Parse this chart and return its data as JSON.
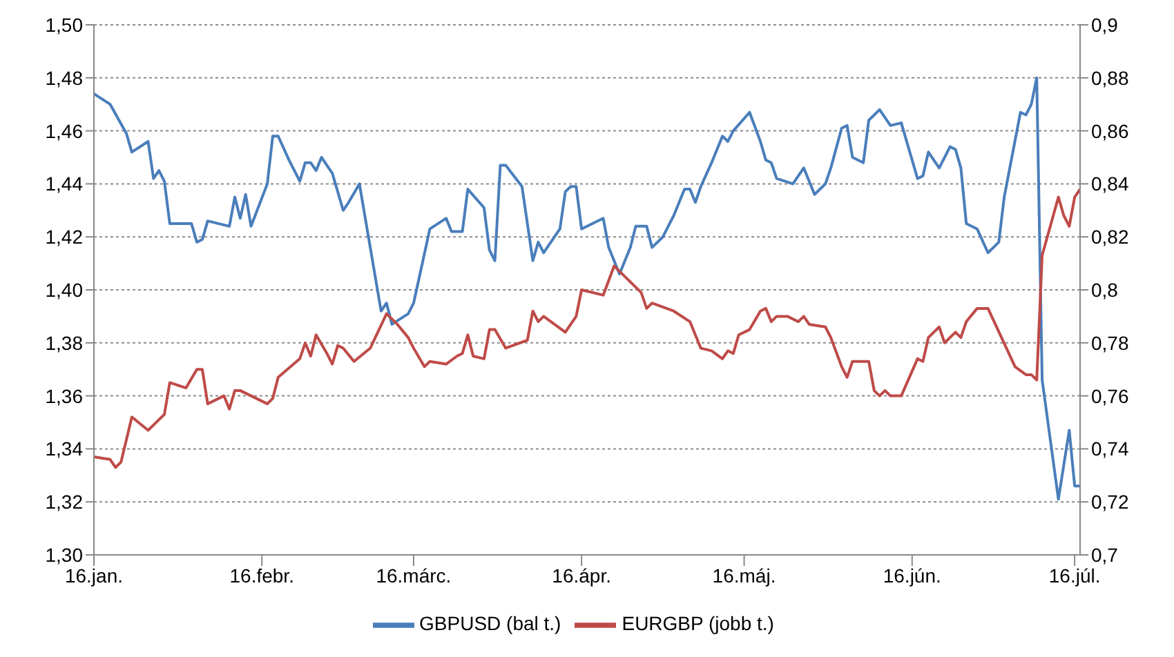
{
  "chart_data": {
    "type": "line",
    "xlim": [
      "--01-16",
      "--07-17"
    ],
    "xticks": [
      {
        "value": "--01-16",
        "label": "16.jan."
      },
      {
        "value": "--02-16",
        "label": "16.febr."
      },
      {
        "value": "--03-16",
        "label": "16.márc."
      },
      {
        "value": "--04-16",
        "label": "16.ápr."
      },
      {
        "value": "--05-16",
        "label": "16.máj."
      },
      {
        "value": "--06-16",
        "label": "16.jún."
      },
      {
        "value": "--07-16",
        "label": "16.júl."
      }
    ],
    "ylim": [
      1.3,
      1.5
    ],
    "yticks": [
      {
        "value": 1.3,
        "label": "1,30"
      },
      {
        "value": 1.32,
        "label": "1,32"
      },
      {
        "value": 1.34,
        "label": "1,34"
      },
      {
        "value": 1.36,
        "label": "1,36"
      },
      {
        "value": 1.38,
        "label": "1,38"
      },
      {
        "value": 1.4,
        "label": "1,40"
      },
      {
        "value": 1.42,
        "label": "1,42"
      },
      {
        "value": 1.44,
        "label": "1,44"
      },
      {
        "value": 1.46,
        "label": "1,46"
      },
      {
        "value": 1.48,
        "label": "1,48"
      },
      {
        "value": 1.5,
        "label": "1,50"
      }
    ],
    "y2lim": [
      0.7,
      0.9
    ],
    "y2ticks": [
      {
        "value": 0.7,
        "label": "0,7"
      },
      {
        "value": 0.72,
        "label": "0,72"
      },
      {
        "value": 0.74,
        "label": "0,74"
      },
      {
        "value": 0.76,
        "label": "0,76"
      },
      {
        "value": 0.78,
        "label": "0,78"
      },
      {
        "value": 0.8,
        "label": "0,8"
      },
      {
        "value": 0.82,
        "label": "0,82"
      },
      {
        "value": 0.84,
        "label": "0,84"
      },
      {
        "value": 0.86,
        "label": "0,86"
      },
      {
        "value": 0.88,
        "label": "0,88"
      },
      {
        "value": 0.9,
        "label": "0,9"
      }
    ],
    "grid": "y",
    "legend": "bottom",
    "marker": "none",
    "line_style": "solid",
    "series": [
      {
        "name": "GBPUSD (bal t.)",
        "color": "#4a7ebb",
        "axis": "y",
        "x": [
          "--01-16",
          "--01-19",
          "--01-22",
          "--01-23",
          "--01-26",
          "--01-27",
          "--01-28",
          "--01-29",
          "--01-30",
          "--02-03",
          "--02-04",
          "--02-05",
          "--02-06",
          "--02-10",
          "--02-11",
          "--02-12",
          "--02-13",
          "--02-14",
          "--02-17",
          "--02-18",
          "--02-19",
          "--02-21",
          "--02-23",
          "--02-24",
          "--02-25",
          "--02-26",
          "--02-27",
          "--03-01",
          "--03-03",
          "--03-04",
          "--03-06",
          "--03-08",
          "--03-10",
          "--03-11",
          "--03-12",
          "--03-15",
          "--03-16",
          "--03-19",
          "--03-22",
          "--03-23",
          "--03-25",
          "--03-26",
          "--03-29",
          "--03-30",
          "--03-31",
          "--04-01",
          "--04-02",
          "--04-05",
          "--04-07",
          "--04-08",
          "--04-09",
          "--04-12",
          "--04-13",
          "--04-14",
          "--04-15",
          "--04-16",
          "--04-20",
          "--04-21",
          "--04-23",
          "--04-25",
          "--04-26",
          "--04-28",
          "--04-29",
          "--05-01",
          "--05-03",
          "--05-05",
          "--05-06",
          "--05-07",
          "--05-08",
          "--05-10",
          "--05-12",
          "--05-13",
          "--05-14",
          "--05-17",
          "--05-19",
          "--05-20",
          "--05-21",
          "--05-22",
          "--05-25",
          "--05-27",
          "--05-29",
          "--05-31",
          "--06-01",
          "--06-03",
          "--06-04",
          "--06-05",
          "--06-07",
          "--06-08",
          "--06-10",
          "--06-12",
          "--06-14",
          "--06-17",
          "--06-18",
          "--06-19",
          "--06-21",
          "--06-23",
          "--06-24",
          "--06-25",
          "--06-26",
          "--06-28",
          "--06-30",
          "--07-02",
          "--07-03",
          "--07-06",
          "--07-07",
          "--07-08",
          "--07-09",
          "--07-10",
          "--07-13",
          "--07-15",
          "--07-16",
          "--07-17"
        ],
        "values": [
          1.474,
          1.47,
          1.459,
          1.452,
          1.456,
          1.442,
          1.445,
          1.441,
          1.425,
          1.425,
          1.418,
          1.419,
          1.426,
          1.424,
          1.435,
          1.427,
          1.436,
          1.424,
          1.44,
          1.458,
          1.458,
          1.449,
          1.441,
          1.448,
          1.448,
          1.445,
          1.45,
          1.444,
          1.43,
          1.433,
          1.44,
          1.416,
          1.392,
          1.395,
          1.387,
          1.391,
          1.395,
          1.423,
          1.427,
          1.422,
          1.422,
          1.438,
          1.431,
          1.415,
          1.411,
          1.447,
          1.447,
          1.439,
          1.411,
          1.418,
          1.414,
          1.423,
          1.437,
          1.439,
          1.439,
          1.423,
          1.427,
          1.416,
          1.406,
          1.416,
          1.424,
          1.424,
          1.416,
          1.42,
          1.428,
          1.438,
          1.438,
          1.433,
          1.439,
          1.448,
          1.458,
          1.456,
          1.46,
          1.467,
          1.456,
          1.449,
          1.448,
          1.442,
          1.44,
          1.446,
          1.436,
          1.44,
          1.446,
          1.461,
          1.462,
          1.45,
          1.448,
          1.464,
          1.468,
          1.462,
          1.463,
          1.442,
          1.443,
          1.452,
          1.446,
          1.454,
          1.453,
          1.446,
          1.425,
          1.423,
          1.414,
          1.418,
          1.435,
          1.467,
          1.466,
          1.47,
          1.48,
          1.366,
          1.321,
          1.347,
          1.326,
          1.326
        ]
      },
      {
        "name": "EURGBP (jobb t.)",
        "color": "#be4b48",
        "axis": "y2",
        "x": [
          "--01-16",
          "--01-19",
          "--01-20",
          "--01-21",
          "--01-23",
          "--01-26",
          "--01-28",
          "--01-29",
          "--01-30",
          "--02-02",
          "--02-04",
          "--02-05",
          "--02-06",
          "--02-09",
          "--02-10",
          "--02-11",
          "--02-12",
          "--02-17",
          "--02-18",
          "--02-19",
          "--02-23",
          "--02-24",
          "--02-25",
          "--02-26",
          "--02-28",
          "--03-01",
          "--03-02",
          "--03-03",
          "--03-05",
          "--03-08",
          "--03-11",
          "--03-13",
          "--03-15",
          "--03-16",
          "--03-18",
          "--03-19",
          "--03-22",
          "--03-24",
          "--03-25",
          "--03-26",
          "--03-27",
          "--03-29",
          "--03-30",
          "--03-31",
          "--04-02",
          "--04-06",
          "--04-07",
          "--04-08",
          "--04-09",
          "--04-13",
          "--04-15",
          "--04-16",
          "--04-20",
          "--04-22",
          "--04-23",
          "--04-27",
          "--04-28",
          "--04-29",
          "--05-03",
          "--05-06",
          "--05-08",
          "--05-10",
          "--05-12",
          "--05-13",
          "--05-14",
          "--05-15",
          "--05-17",
          "--05-19",
          "--05-20",
          "--05-21",
          "--05-22",
          "--05-24",
          "--05-26",
          "--05-27",
          "--05-28",
          "--05-31",
          "--06-01",
          "--06-03",
          "--06-04",
          "--06-05",
          "--06-08",
          "--06-09",
          "--06-10",
          "--06-11",
          "--06-12",
          "--06-14",
          "--06-17",
          "--06-18",
          "--06-19",
          "--06-21",
          "--06-22",
          "--06-24",
          "--06-25",
          "--06-26",
          "--06-28",
          "--06-30",
          "--07-05",
          "--07-07",
          "--07-08",
          "--07-09",
          "--07-10",
          "--07-13",
          "--07-14",
          "--07-15",
          "--07-16",
          "--07-17"
        ],
        "values": [
          0.737,
          0.736,
          0.733,
          0.735,
          0.752,
          0.747,
          0.751,
          0.753,
          0.765,
          0.763,
          0.77,
          0.77,
          0.757,
          0.76,
          0.755,
          0.762,
          0.762,
          0.757,
          0.759,
          0.767,
          0.774,
          0.78,
          0.775,
          0.783,
          0.776,
          0.772,
          0.779,
          0.778,
          0.773,
          0.778,
          0.791,
          0.787,
          0.782,
          0.778,
          0.771,
          0.773,
          0.772,
          0.775,
          0.776,
          0.783,
          0.775,
          0.774,
          0.785,
          0.785,
          0.778,
          0.781,
          0.792,
          0.788,
          0.79,
          0.784,
          0.79,
          0.8,
          0.798,
          0.809,
          0.807,
          0.799,
          0.793,
          0.795,
          0.792,
          0.788,
          0.778,
          0.777,
          0.774,
          0.777,
          0.776,
          0.783,
          0.785,
          0.792,
          0.793,
          0.788,
          0.79,
          0.79,
          0.788,
          0.79,
          0.787,
          0.786,
          0.782,
          0.771,
          0.767,
          0.773,
          0.773,
          0.762,
          0.76,
          0.762,
          0.76,
          0.76,
          0.774,
          0.773,
          0.782,
          0.786,
          0.78,
          0.784,
          0.782,
          0.788,
          0.793,
          0.793,
          0.771,
          0.768,
          0.768,
          0.766,
          0.813,
          0.835,
          0.828,
          0.824,
          0.835,
          0.838
        ]
      }
    ]
  }
}
